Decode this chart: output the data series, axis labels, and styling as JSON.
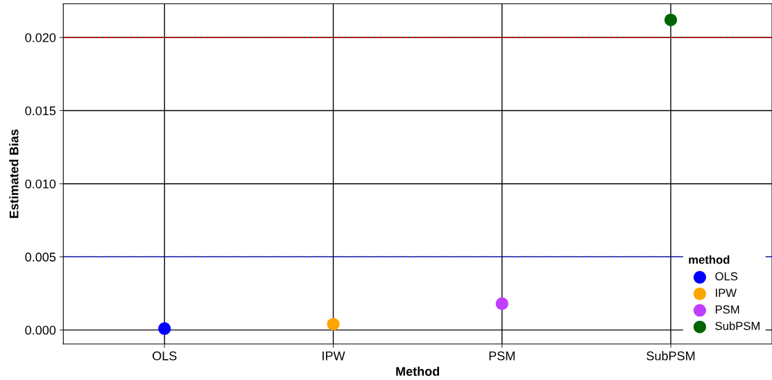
{
  "chart_data": {
    "type": "scatter",
    "xlabel": "Method",
    "ylabel": "Estimated Bias",
    "legend_title": "method",
    "categories": [
      "OLS",
      "IPW",
      "PSM",
      "SubPSM"
    ],
    "series": [
      {
        "name": "OLS",
        "color": "#0000ff",
        "values": [
          0.0001,
          null,
          null,
          null
        ]
      },
      {
        "name": "IPW",
        "color": "#ffa500",
        "values": [
          null,
          0.0004,
          null,
          null
        ]
      },
      {
        "name": "PSM",
        "color": "#bf3eff",
        "values": [
          null,
          null,
          0.0018,
          null
        ]
      },
      {
        "name": "SubPSM",
        "color": "#006400",
        "values": [
          null,
          null,
          null,
          0.0212
        ]
      }
    ],
    "ylim": [
      -0.00095,
      0.0223
    ],
    "yticks": [
      {
        "value": 0,
        "label": "0.000"
      },
      {
        "value": 0.005,
        "label": "0.005"
      },
      {
        "value": 0.01,
        "label": "0.010"
      },
      {
        "value": 0.015,
        "label": "0.015"
      },
      {
        "value": 0.02,
        "label": "0.020"
      }
    ],
    "ref_lines": [
      {
        "axis": "y",
        "value": 0.02,
        "color": "#ff0000",
        "line_style": "dashed"
      },
      {
        "axis": "y",
        "value": 0.005,
        "color": "#0000ff",
        "line_style": "dashed"
      }
    ],
    "grid": true,
    "legend": "bottom right",
    "marker": "circle"
  }
}
